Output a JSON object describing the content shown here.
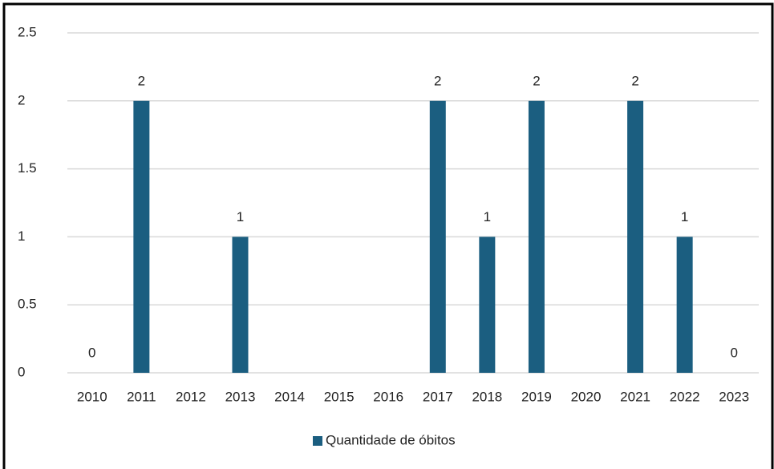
{
  "chart_data": {
    "type": "bar",
    "categories": [
      "2010",
      "2011",
      "2012",
      "2013",
      "2014",
      "2015",
      "2016",
      "2017",
      "2018",
      "2019",
      "2020",
      "2021",
      "2022",
      "2023"
    ],
    "series": [
      {
        "name": "Quantidade de óbitos",
        "color": "#1b5e80",
        "values": [
          0,
          2,
          null,
          1,
          null,
          null,
          null,
          2,
          1,
          2,
          null,
          2,
          1,
          0
        ]
      }
    ],
    "ylim": [
      0,
      2.5
    ],
    "yticks": [
      0,
      0.5,
      1,
      1.5,
      2,
      2.5
    ],
    "grid": true,
    "legend": "bottom"
  }
}
